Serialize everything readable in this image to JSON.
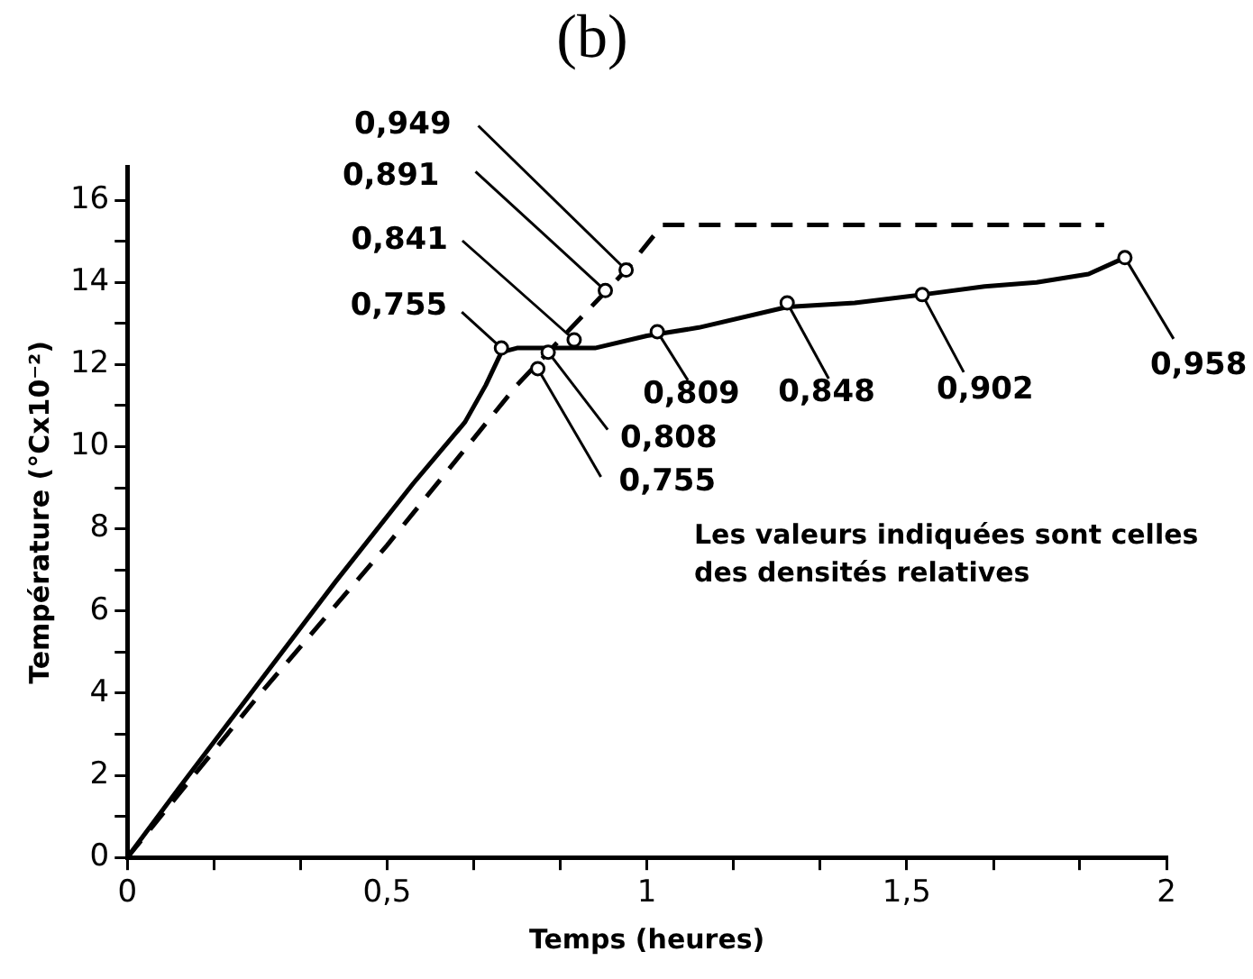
{
  "chart_data": {
    "type": "line",
    "title": "(b)",
    "xlabel": "Temps (heures)",
    "ylabel": "Température (°Cx10⁻²)",
    "xlim": [
      0,
      2
    ],
    "ylim": [
      0,
      16.8
    ],
    "xticks": [
      0,
      {
        "value": 0.167,
        "label": null
      },
      {
        "value": 0.333,
        "label": null
      },
      {
        "value": 0.5,
        "label": "0,5"
      },
      {
        "value": 0.667,
        "label": null
      },
      {
        "value": 0.833,
        "label": null
      },
      1,
      {
        "value": 1.167,
        "label": null
      },
      {
        "value": 1.333,
        "label": null
      },
      {
        "value": 1.5,
        "label": "1,5"
      },
      {
        "value": 1.667,
        "label": null
      },
      {
        "value": 1.833,
        "label": null
      },
      2
    ],
    "yticks": [
      0,
      {
        "value": 1,
        "label": null
      },
      2,
      {
        "value": 3,
        "label": null
      },
      4,
      {
        "value": 5,
        "label": null
      },
      6,
      {
        "value": 7,
        "label": null
      },
      8,
      {
        "value": 9,
        "label": null
      },
      10,
      {
        "value": 11,
        "label": null
      },
      12,
      {
        "value": 13,
        "label": null
      },
      14,
      {
        "value": 15,
        "label": null
      },
      16
    ],
    "grid": false,
    "legend": false,
    "marker": "none",
    "series": [
      {
        "color": "#000000",
        "line_style": "solid",
        "x": [
          0,
          0.1,
          0.25,
          0.4,
          0.55,
          0.65,
          0.69,
          0.72,
          0.75,
          0.9,
          1.0,
          1.1,
          1.27,
          1.4,
          1.53,
          1.65,
          1.75,
          1.85,
          1.92
        ],
        "values": [
          0,
          1.7,
          4.2,
          6.7,
          9.1,
          10.6,
          11.5,
          12.3,
          12.4,
          12.4,
          12.7,
          12.9,
          13.4,
          13.5,
          13.7,
          13.9,
          14.0,
          14.2,
          14.6
        ]
      },
      {
        "color": "#000000",
        "line_style": "dashed",
        "x": [
          0,
          0.25,
          0.5,
          0.75,
          0.96,
          1.03,
          1.88
        ],
        "values": [
          0,
          3.9,
          7.6,
          11.5,
          14.3,
          15.4,
          15.4
        ]
      }
    ],
    "annotations": [
      {
        "text": "0,949",
        "x": 0.96,
        "y": 14.3
      },
      {
        "text": "0,891",
        "x": 0.92,
        "y": 13.8
      },
      {
        "text": "0,841",
        "x": 0.86,
        "y": 12.6
      },
      {
        "text": "0,755",
        "x": 0.72,
        "y": 12.4
      },
      {
        "text": "0,808",
        "x": 0.81,
        "y": 12.3
      },
      {
        "text": "0,755",
        "x": 0.79,
        "y": 11.9
      },
      {
        "text": "0,809",
        "x": 1.02,
        "y": 12.8
      },
      {
        "text": "0,848",
        "x": 1.27,
        "y": 13.5
      },
      {
        "text": "0,902",
        "x": 1.53,
        "y": 13.7
      },
      {
        "text": "0,958",
        "x": 1.92,
        "y": 14.6
      },
      "Les valeurs indiquées sont celles des densités relatives"
    ]
  }
}
